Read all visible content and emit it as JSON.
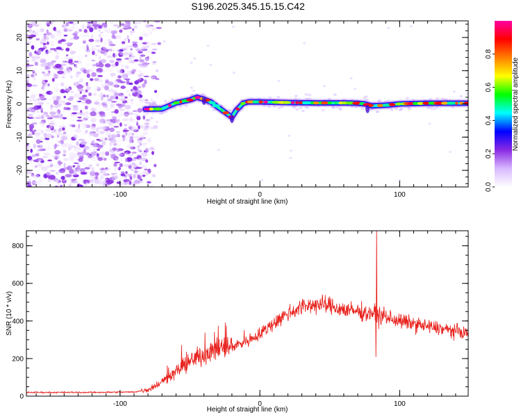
{
  "figure": {
    "title": "S196.2025.345.15.15.C42"
  },
  "chart_data": [
    {
      "type": "heatmap",
      "xlabel": "Height of straight line (km)",
      "ylabel": "Frequency (Hz)",
      "xlim": [
        -167,
        149
      ],
      "ylim": [
        -25,
        25
      ],
      "xticks": [
        -100,
        0,
        100
      ],
      "yticks": [
        20,
        10,
        0,
        -10,
        -20
      ],
      "minor_x_step": 10,
      "minor_y_step": 2,
      "noise_region_x": [
        -167,
        -80
      ],
      "ridge_start_x": -82,
      "ridge": [
        [
          -82,
          -1.6
        ],
        [
          -70,
          -1.5
        ],
        [
          -60,
          0.3
        ],
        [
          -50,
          1.2
        ],
        [
          -45,
          2.0
        ],
        [
          -40,
          1.4
        ],
        [
          -35,
          0.6
        ],
        [
          -30,
          -1.0
        ],
        [
          -25,
          -2.5
        ],
        [
          -20,
          -4.0
        ],
        [
          -17,
          -2.0
        ],
        [
          -12,
          0.2
        ],
        [
          -8,
          0.6
        ],
        [
          0,
          0.6
        ],
        [
          10,
          0.5
        ],
        [
          20,
          0.4
        ],
        [
          40,
          0.3
        ],
        [
          60,
          0.3
        ],
        [
          70,
          0.2
        ],
        [
          75,
          0.0
        ],
        [
          80,
          -0.6
        ],
        [
          90,
          -0.4
        ],
        [
          100,
          0.0
        ],
        [
          120,
          0.2
        ],
        [
          149,
          0.2
        ]
      ],
      "colorbar": {
        "label": "Normalized spectral amplitude",
        "ticks": [
          0.0,
          0.2,
          0.4,
          0.6,
          0.8
        ],
        "range": [
          0,
          1
        ],
        "colors": [
          "#ffffff",
          "#d8b8ff",
          "#8a2be2",
          "#0000ff",
          "#00ffff",
          "#00ff00",
          "#ffff00",
          "#ff8000",
          "#ff0000",
          "#ff00a0"
        ]
      }
    },
    {
      "type": "line",
      "xlabel": "Height of straight line (km)",
      "ylabel": "SNR (10 * v/v)",
      "xlim": [
        -167,
        149
      ],
      "ylim": [
        0,
        880
      ],
      "xticks": [
        -100,
        0,
        100
      ],
      "yticks": [
        0,
        200,
        400,
        600,
        800
      ],
      "minor_x_step": 10,
      "minor_y_step": 50,
      "line_color": "#e8231e",
      "trend": [
        [
          -167,
          20
        ],
        [
          -120,
          20
        ],
        [
          -90,
          22
        ],
        [
          -80,
          35
        ],
        [
          -70,
          75
        ],
        [
          -60,
          130
        ],
        [
          -50,
          185
        ],
        [
          -40,
          225
        ],
        [
          -30,
          250
        ],
        [
          -20,
          265
        ],
        [
          -10,
          290
        ],
        [
          0,
          330
        ],
        [
          10,
          390
        ],
        [
          20,
          440
        ],
        [
          30,
          475
        ],
        [
          40,
          490
        ],
        [
          50,
          480
        ],
        [
          60,
          460
        ],
        [
          70,
          450
        ],
        [
          80,
          440
        ],
        [
          90,
          420
        ],
        [
          100,
          400
        ],
        [
          120,
          370
        ],
        [
          149,
          335
        ]
      ],
      "spike": {
        "x": 83.5,
        "y": 880
      },
      "dip": {
        "x": 83.0,
        "y": 210
      }
    }
  ]
}
